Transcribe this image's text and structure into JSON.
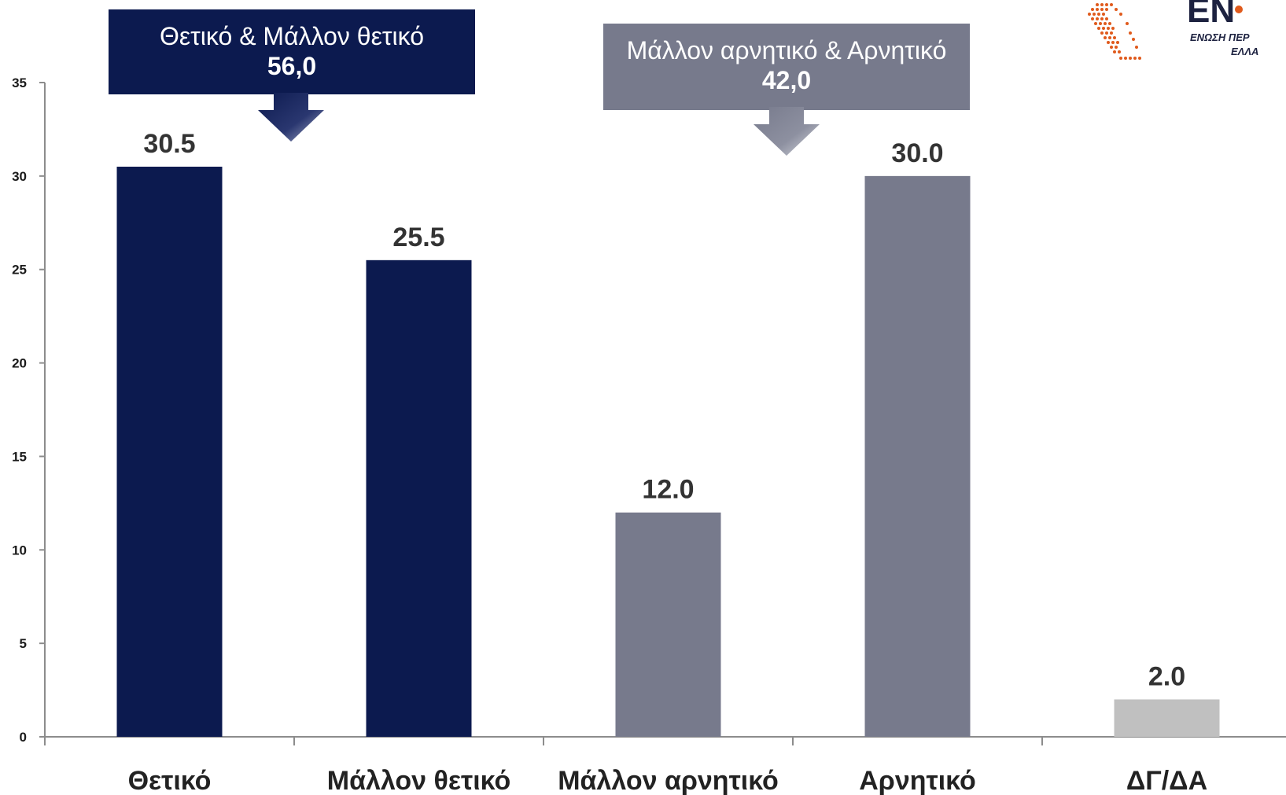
{
  "chart_data": {
    "type": "bar",
    "categories": [
      "Θετικό",
      "Μάλλον θετικό",
      "Μάλλον αρνητικό",
      "Αρνητικό",
      "ΔΓ/ΔΑ"
    ],
    "values": [
      30.5,
      25.5,
      12.0,
      30.0,
      2.0
    ],
    "value_labels": [
      "30.5",
      "25.5",
      "12.0",
      "30.0",
      "2.0"
    ],
    "bar_colors": [
      "#0c1a4f",
      "#0c1a4f",
      "#777a8c",
      "#777a8c",
      "#c0c0c0"
    ],
    "ylim": [
      0,
      35
    ],
    "yticks": [
      0,
      5,
      10,
      15,
      20,
      25,
      30,
      35
    ],
    "grid": false,
    "title": "",
    "xlabel": "",
    "ylabel": ""
  },
  "callouts": {
    "positive": {
      "title": "Θετικό & Μάλλον θετικό",
      "value": "56,0",
      "color": "#0c1a4f"
    },
    "negative": {
      "title": "Μάλλον αρνητικό & Αρνητικό",
      "value": "42,0",
      "color": "#777a8c"
    }
  },
  "logo": {
    "wordmark": "ΕΝ",
    "subtitle_line1": "ΕΝΩΣΗ ΠΕΡ",
    "subtitle_line2": "ΕΛΛΑ",
    "icon": "greece-map-icon",
    "accent": "#e05a1c"
  }
}
